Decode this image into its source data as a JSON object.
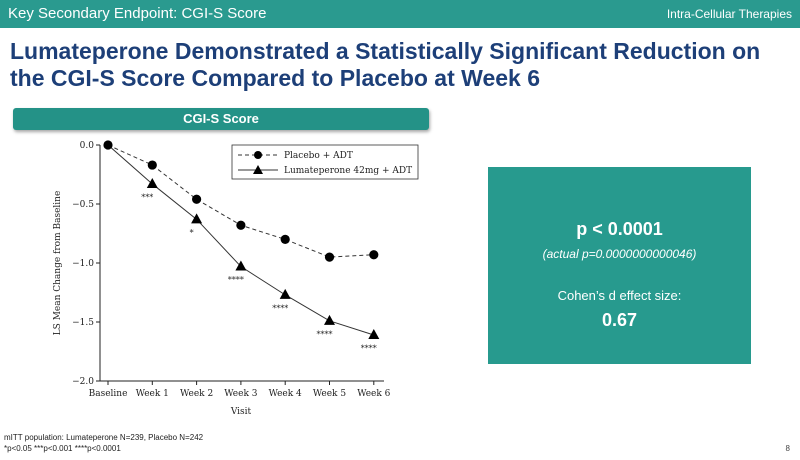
{
  "header": {
    "section_title": "Key Secondary Endpoint: CGI-S Score",
    "brand": "Intra-Cellular Therapies"
  },
  "headline": "Lumateperone Demonstrated a Statistically Significant Reduction on the CGI-S Score Compared to Placebo at Week 6",
  "chart_title": "CGI-S Score",
  "chart_data": {
    "type": "line",
    "title": "CGI-S Score",
    "xlabel": "Visit",
    "ylabel": "LS Mean Change from Baseline",
    "ylim": [
      -2.0,
      0.0
    ],
    "yticks": [
      0.0,
      -0.5,
      -1.0,
      -1.5,
      -2.0
    ],
    "ytick_labels": [
      "0.0",
      "−0.5",
      "−1.0",
      "−1.5",
      "−2.0"
    ],
    "categories": [
      "Baseline",
      "Week 1",
      "Week 2",
      "Week 3",
      "Week 4",
      "Week 5",
      "Week 6"
    ],
    "legend_position": "top-right",
    "series": [
      {
        "name": "Placebo  +  ADT",
        "marker": "circle",
        "style": "dashed",
        "values": [
          0.0,
          -0.17,
          -0.46,
          -0.68,
          -0.8,
          -0.95,
          -0.93
        ]
      },
      {
        "name": "Lumateperone 42mg  +  ADT",
        "marker": "triangle",
        "style": "solid",
        "values": [
          0.0,
          -0.33,
          -0.63,
          -1.03,
          -1.27,
          -1.49,
          -1.61
        ],
        "significance": [
          "",
          "***",
          "*",
          "****",
          "****",
          "****",
          "****"
        ]
      }
    ]
  },
  "stats": {
    "p_value": "p < 0.0001",
    "actual": "(actual p=0.0000000000046)",
    "effect_label": "Cohen’s d effect size:",
    "effect_value": "0.67"
  },
  "footnotes": {
    "line1": "mITT population: Lumateperone N=239, Placebo N=242",
    "line2": "*p<0.05 ***p<0.001 ****p<0.0001"
  },
  "page_number": "8"
}
